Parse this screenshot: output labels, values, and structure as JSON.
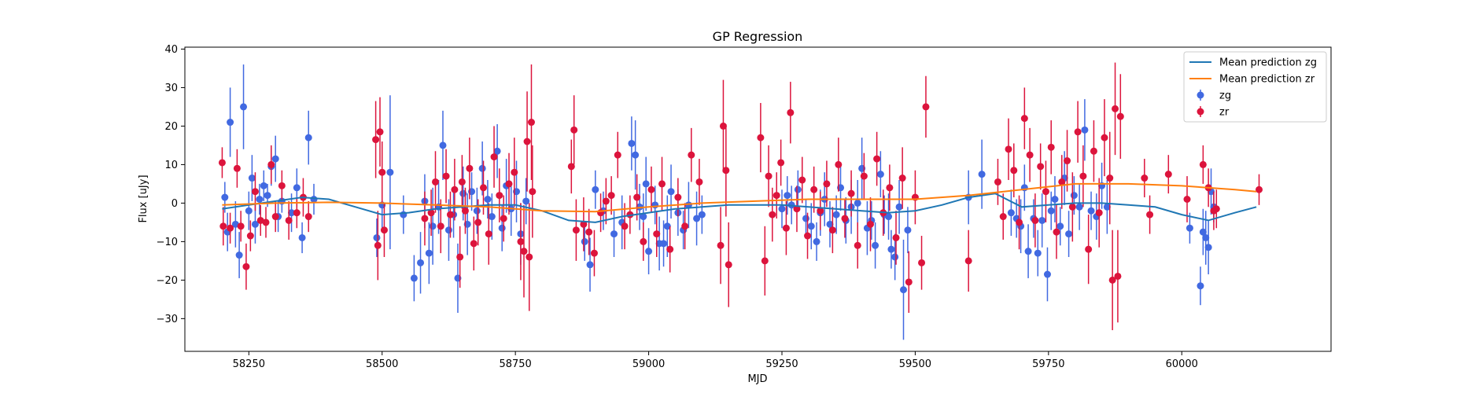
{
  "chart_data": {
    "type": "scatter",
    "title": "GP Regression",
    "xlabel": "MJD",
    "ylabel": "Flux [uJy]",
    "xlim": [
      58130,
      60280
    ],
    "ylim": [
      -38.5,
      40.5
    ],
    "xticks": [
      58250,
      58500,
      58750,
      59000,
      59250,
      59500,
      59750,
      60000
    ],
    "xtick_labels": [
      "58250",
      "58500",
      "58750",
      "59000",
      "59250",
      "59500",
      "59750",
      "60000"
    ],
    "yticks": [
      -30,
      -20,
      -10,
      0,
      10,
      20,
      30,
      40
    ],
    "ytick_labels": [
      "−30",
      "−20",
      "−10",
      "0",
      "10",
      "20",
      "30",
      "40"
    ],
    "grid": false,
    "legend_position": "top-right",
    "legend": [
      {
        "label": "Mean prediction zg",
        "kind": "line",
        "color": "#1f77b4"
      },
      {
        "label": "Mean prediction zr",
        "kind": "line",
        "color": "#ff7f0e"
      },
      {
        "label": "zg",
        "kind": "errorbar",
        "color": "#4169e1"
      },
      {
        "label": "zr",
        "kind": "errorbar",
        "color": "#dc143c"
      }
    ],
    "series": [
      {
        "name": "Mean prediction zg",
        "kind": "line",
        "color": "#1f77b4",
        "x": [
          58200,
          58250,
          58300,
          58350,
          58400,
          58450,
          58500,
          58550,
          58600,
          58650,
          58700,
          58750,
          58800,
          58850,
          58900,
          58950,
          59000,
          59050,
          59100,
          59150,
          59200,
          59250,
          59300,
          59350,
          59400,
          59450,
          59500,
          59550,
          59600,
          59650,
          59700,
          59750,
          59800,
          59850,
          59900,
          59950,
          60000,
          60050,
          60100,
          60140
        ],
        "y": [
          -1.5,
          -0.5,
          0.5,
          1.5,
          1.0,
          -1.0,
          -3.0,
          -2.5,
          -1.5,
          -1.0,
          -0.5,
          -0.5,
          -2.0,
          -4.5,
          -5.0,
          -3.5,
          -2.5,
          -1.5,
          -1.0,
          -0.5,
          -0.5,
          -0.5,
          -1.0,
          -1.5,
          -2.0,
          -2.5,
          -2.0,
          -0.5,
          1.5,
          2.5,
          -1.0,
          -0.5,
          0.0,
          0.0,
          -0.5,
          -1.0,
          -3.0,
          -4.5,
          -2.5,
          -1.0
        ]
      },
      {
        "name": "Mean prediction zr",
        "kind": "line",
        "color": "#ff7f0e",
        "x": [
          58200,
          58300,
          58400,
          58500,
          58600,
          58700,
          58800,
          58900,
          59000,
          59100,
          59200,
          59300,
          59400,
          59500,
          59600,
          59700,
          59800,
          59900,
          60000,
          60100,
          60140
        ],
        "y": [
          -0.5,
          0.0,
          0.2,
          0.0,
          -0.5,
          -1.0,
          -2.0,
          -2.2,
          -1.0,
          0.0,
          0.5,
          1.0,
          1.0,
          1.0,
          2.0,
          3.5,
          5.0,
          5.0,
          4.5,
          3.5,
          3.0
        ]
      },
      {
        "name": "zg",
        "kind": "errorbar",
        "color": "#4169e1",
        "x": [
          58205,
          58210,
          58215,
          58225,
          58232,
          58240,
          58250,
          58256,
          58262,
          58270,
          58278,
          58285,
          58292,
          58300,
          58305,
          58312,
          58330,
          58340,
          58350,
          58362,
          58372,
          58490,
          58500,
          58515,
          58540,
          58560,
          58572,
          58580,
          58588,
          58595,
          58606,
          58614,
          58625,
          58634,
          58642,
          58652,
          58660,
          58668,
          58678,
          58688,
          58698,
          58706,
          58716,
          58725,
          58733,
          58742,
          58752,
          58760,
          58770,
          58880,
          58890,
          58900,
          58915,
          58935,
          58950,
          58968,
          58975,
          58983,
          58990,
          58995,
          59000,
          59012,
          59020,
          59028,
          59035,
          59042,
          59055,
          59065,
          59075,
          59090,
          59100,
          59250,
          59260,
          59268,
          59280,
          59295,
          59305,
          59315,
          59322,
          59330,
          59340,
          59352,
          59360,
          59370,
          59380,
          59392,
          59400,
          59410,
          59418,
          59425,
          59435,
          59442,
          59450,
          59455,
          59462,
          59470,
          59478,
          59486,
          59600,
          59625,
          59680,
          59690,
          59698,
          59705,
          59712,
          59722,
          59730,
          59738,
          59748,
          59755,
          59762,
          59772,
          59780,
          59788,
          59798,
          59808,
          59818,
          59830,
          59840,
          59850,
          59860,
          60015,
          60035,
          60040,
          60045,
          60050,
          60055,
          60060
        ],
        "y": [
          1.5,
          -7.5,
          21.0,
          -5.5,
          -13.5,
          25.0,
          -2.0,
          6.5,
          -5.5,
          1.0,
          4.5,
          2.0,
          9.5,
          11.5,
          -3.5,
          0.5,
          -2.5,
          4.0,
          -9.0,
          17.0,
          1.0,
          -9.0,
          -0.5,
          8.0,
          -3.0,
          -19.5,
          -15.5,
          0.5,
          -13.0,
          -6.0,
          -1.0,
          15.0,
          -7.0,
          -3.0,
          -19.5,
          2.5,
          -5.5,
          3.0,
          -2.0,
          9.0,
          1.0,
          -3.5,
          13.5,
          -6.5,
          4.5,
          -1.5,
          3.0,
          -8.0,
          0.5,
          -10.0,
          -16.0,
          3.5,
          -2.0,
          -8.0,
          -5.0,
          15.5,
          12.5,
          -1.0,
          -3.5,
          5.0,
          -12.5,
          -0.5,
          -10.5,
          -10.5,
          -6.0,
          3.0,
          -2.5,
          -7.0,
          -0.5,
          -4.0,
          -3.0,
          -1.5,
          2.0,
          -0.5,
          3.5,
          -4.0,
          -6.0,
          -10.0,
          -2.5,
          1.0,
          -5.5,
          -3.0,
          4.0,
          -4.5,
          -1.0,
          0.0,
          9.0,
          -6.5,
          -4.5,
          -11.0,
          7.5,
          -3.0,
          -3.5,
          -12.0,
          -14.0,
          -1.0,
          -22.5,
          -7.0,
          1.5,
          7.5,
          -2.5,
          -4.0,
          -6.0,
          4.0,
          -12.5,
          -4.0,
          -13.0,
          -4.5,
          -18.5,
          -2.0,
          1.0,
          -6.0,
          6.5,
          -8.0,
          2.0,
          -1.0,
          19.0,
          -2.0,
          -3.5,
          4.5,
          -1.0,
          -6.5,
          -21.5,
          -7.5,
          -9.0,
          -11.5,
          3.0,
          -1.0
        ],
        "err": [
          4,
          5,
          9,
          6,
          6,
          11,
          5,
          6,
          5,
          4,
          4,
          3,
          5,
          6,
          4,
          3,
          5,
          5,
          4,
          7,
          4,
          5,
          6,
          20,
          5,
          6,
          8,
          7,
          8,
          10,
          7,
          9,
          8,
          6,
          9,
          7,
          8,
          5,
          6,
          7,
          5,
          6,
          7,
          6,
          7,
          7,
          8,
          8,
          6,
          5,
          7,
          5,
          5,
          6,
          7,
          7,
          9,
          6,
          6,
          7,
          6,
          5,
          7,
          6,
          8,
          7,
          6,
          5,
          6,
          7,
          5,
          5,
          5,
          5,
          5,
          5,
          6,
          5,
          6,
          7,
          6,
          5,
          6,
          6,
          7,
          6,
          8,
          7,
          5,
          6,
          6,
          5,
          6,
          5,
          6,
          7,
          13,
          6,
          7,
          9,
          6,
          5,
          7,
          6,
          7,
          5,
          6,
          7,
          7,
          5,
          6,
          5,
          7,
          6,
          5,
          6,
          8,
          5,
          6,
          6,
          7,
          4,
          5,
          6,
          7,
          7,
          6,
          4
        ]
      },
      {
        "name": "zr",
        "kind": "errorbar",
        "color": "#dc143c",
        "x": [
          58200,
          58202,
          58215,
          58228,
          58235,
          58245,
          58253,
          58262,
          58272,
          58282,
          58292,
          58300,
          58312,
          58325,
          58340,
          58352,
          58362,
          58488,
          58492,
          58496,
          58500,
          58504,
          58580,
          58592,
          58600,
          58610,
          58620,
          58628,
          58636,
          58646,
          58650,
          58656,
          58664,
          58672,
          58680,
          58690,
          58700,
          58710,
          58720,
          58728,
          58738,
          58748,
          58760,
          58766,
          58772,
          58776,
          58780,
          58782,
          58855,
          58860,
          58864,
          58878,
          58888,
          58898,
          58910,
          58920,
          58930,
          58942,
          58955,
          58965,
          58978,
          58990,
          59005,
          59015,
          59025,
          59040,
          59055,
          59068,
          59080,
          59095,
          59135,
          59140,
          59145,
          59150,
          59210,
          59218,
          59225,
          59232,
          59240,
          59248,
          59258,
          59266,
          59278,
          59288,
          59298,
          59310,
          59322,
          59334,
          59345,
          59356,
          59368,
          59380,
          59392,
          59404,
          59416,
          59428,
          59440,
          59452,
          59464,
          59476,
          59488,
          59500,
          59512,
          59520,
          59600,
          59655,
          59665,
          59675,
          59685,
          59695,
          59705,
          59715,
          59725,
          59735,
          59745,
          59755,
          59765,
          59775,
          59785,
          59795,
          59805,
          59815,
          59825,
          59835,
          59845,
          59855,
          59865,
          59870,
          59875,
          59880,
          59885,
          59930,
          59940,
          59975,
          60010,
          60040,
          60050,
          60060,
          60065,
          60145
        ],
        "y": [
          10.5,
          -6.0,
          -6.5,
          9.0,
          -6.0,
          -16.5,
          -8.5,
          3.0,
          -4.5,
          -5.0,
          10.0,
          -3.5,
          4.5,
          -4.5,
          -2.5,
          1.5,
          -3.5,
          16.5,
          -11.0,
          18.5,
          8.0,
          -7.0,
          -4.0,
          -2.5,
          5.5,
          -6.0,
          7.0,
          -3.0,
          3.5,
          -14.0,
          5.5,
          -2.0,
          9.0,
          -10.5,
          -5.0,
          4.0,
          -8.0,
          12.0,
          2.0,
          -4.0,
          5.0,
          8.0,
          -10.0,
          -12.5,
          16.0,
          -14.0,
          21.0,
          3.0,
          9.5,
          19.0,
          -7.0,
          -5.5,
          -7.5,
          -13.0,
          -2.5,
          0.5,
          2.0,
          12.5,
          -6.0,
          -3.0,
          1.5,
          -10.0,
          3.5,
          -8.0,
          5.0,
          -12.0,
          1.5,
          -6.0,
          12.5,
          5.5,
          -11.0,
          20.0,
          8.5,
          -16.0,
          17.0,
          -15.0,
          7.0,
          -3.0,
          2.0,
          10.5,
          -6.5,
          23.5,
          -1.5,
          6.0,
          -8.5,
          3.5,
          -2.0,
          5.0,
          -7.0,
          10.0,
          -4.0,
          2.5,
          -11.0,
          7.0,
          -5.5,
          11.5,
          -2.5,
          4.0,
          -9.0,
          6.5,
          -20.5,
          1.5,
          -15.5,
          25.0,
          -15.0,
          5.5,
          -3.5,
          14.0,
          8.5,
          -5.0,
          22.0,
          12.5,
          -4.5,
          9.5,
          3.0,
          14.5,
          -7.5,
          5.5,
          11.0,
          -1.0,
          18.5,
          7.0,
          -12.0,
          13.5,
          -2.5,
          17.0,
          6.5,
          -20.0,
          24.5,
          -19.0,
          22.5,
          6.5,
          -3.0,
          7.5,
          1.0,
          10.0,
          4.0,
          -2.0,
          -1.5,
          3.5
        ],
        "err": [
          4,
          5,
          4,
          5,
          4,
          6,
          4,
          5,
          4,
          4,
          5,
          4,
          4,
          5,
          4,
          5,
          4,
          10,
          9,
          9,
          8,
          7,
          7,
          6,
          8,
          7,
          7,
          6,
          8,
          8,
          7,
          6,
          8,
          7,
          6,
          7,
          8,
          8,
          7,
          6,
          8,
          9,
          10,
          12,
          13,
          14,
          15,
          12,
          7,
          9,
          8,
          7,
          6,
          6,
          5,
          6,
          5,
          6,
          6,
          5,
          6,
          5,
          6,
          6,
          7,
          6,
          5,
          6,
          7,
          6,
          10,
          12,
          12,
          11,
          9,
          9,
          8,
          7,
          6,
          6,
          7,
          8,
          6,
          6,
          6,
          6,
          5,
          6,
          6,
          7,
          5,
          6,
          6,
          6,
          7,
          7,
          6,
          6,
          7,
          8,
          8,
          7,
          7,
          8,
          8,
          6,
          6,
          8,
          7,
          7,
          8,
          7,
          7,
          6,
          8,
          7,
          7,
          7,
          8,
          9,
          8,
          8,
          9,
          8,
          9,
          10,
          12,
          13,
          12,
          12,
          11,
          5,
          5,
          5,
          6,
          5,
          5,
          5,
          5,
          4
        ]
      }
    ]
  }
}
